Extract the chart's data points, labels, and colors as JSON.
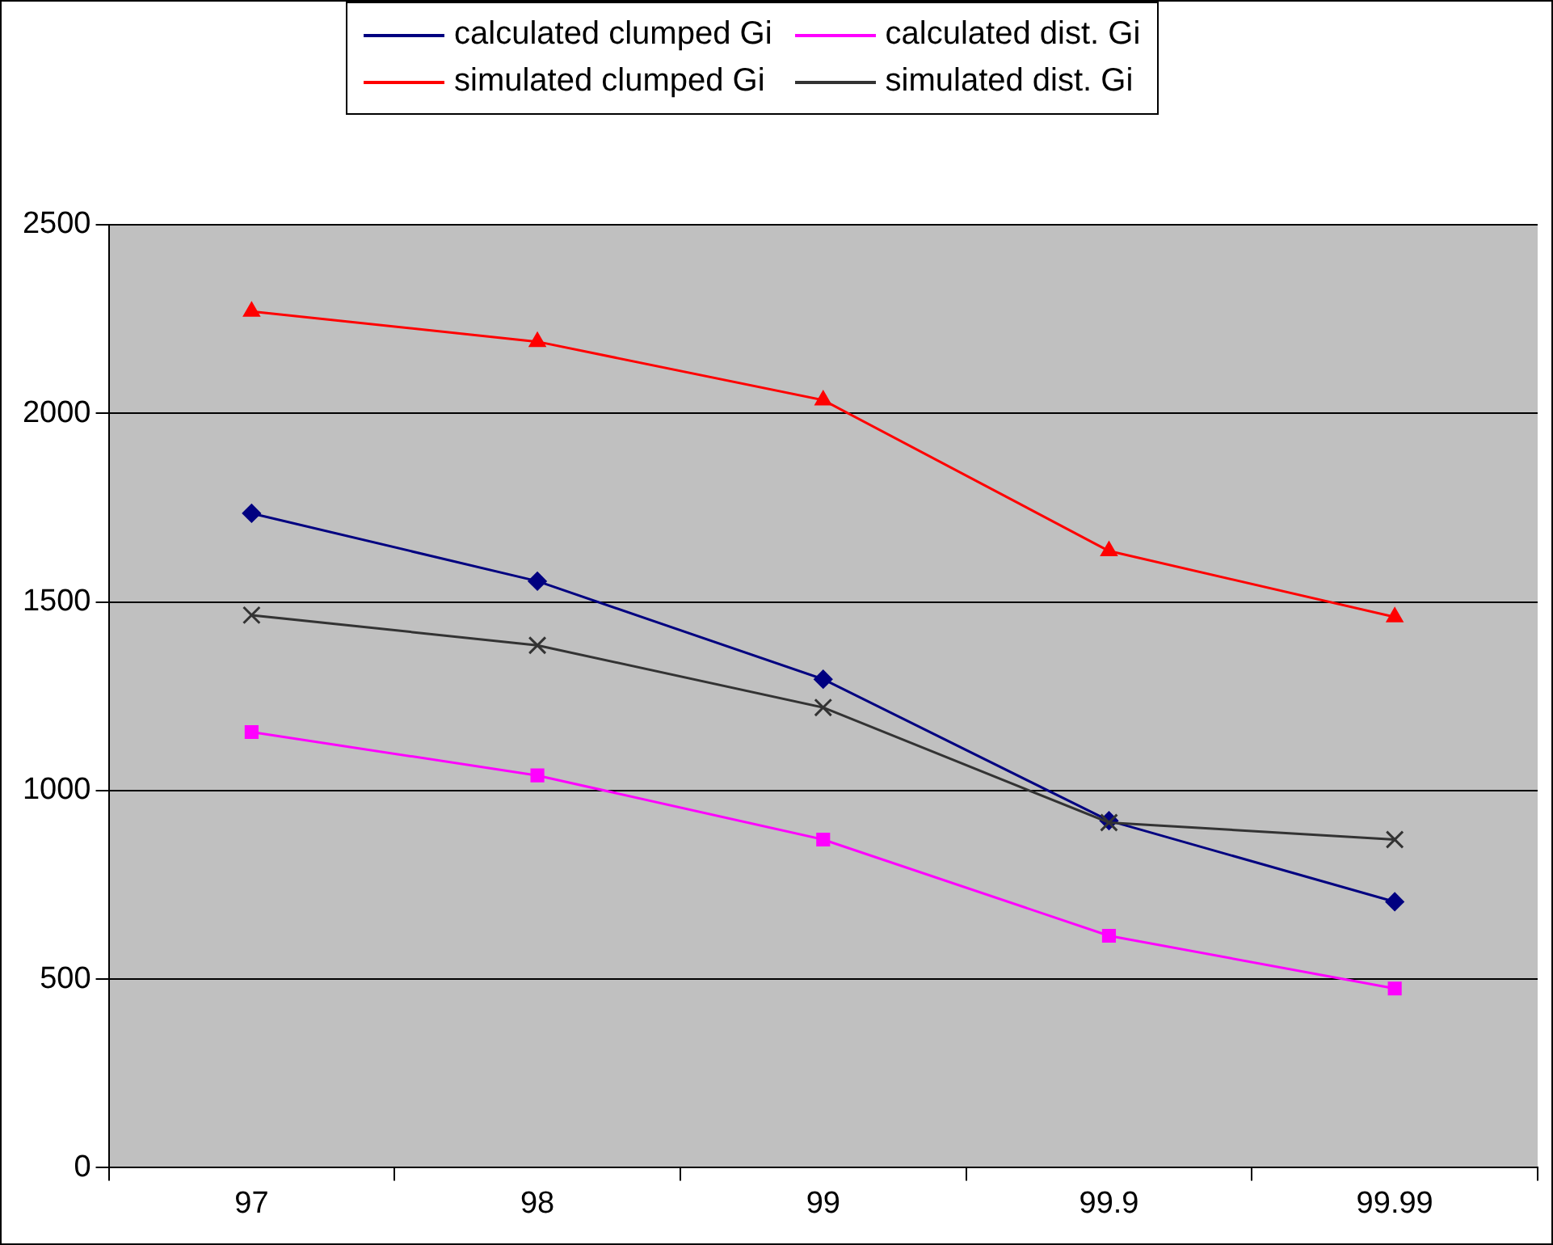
{
  "chart_data": {
    "type": "line",
    "categories": [
      "97",
      "98",
      "99",
      "99.9",
      "99.99"
    ],
    "series": [
      {
        "name": "calculated clumped Gi",
        "color": "#000080",
        "marker": "diamond",
        "values": [
          1735,
          1555,
          1295,
          920,
          705
        ]
      },
      {
        "name": "calculated dist. Gi",
        "color": "#ff00ff",
        "marker": "square",
        "values": [
          1155,
          1040,
          870,
          615,
          475
        ]
      },
      {
        "name": "simulated clumped Gi",
        "color": "#ff0000",
        "marker": "triangle",
        "values": [
          2270,
          2190,
          2035,
          1635,
          1460
        ]
      },
      {
        "name": "simulated dist. Gi",
        "color": "#333333",
        "marker": "cross",
        "values": [
          1465,
          1385,
          1220,
          915,
          870
        ]
      }
    ],
    "ylim": [
      0,
      2500
    ],
    "yticks": [
      0,
      500,
      1000,
      1500,
      2000,
      2500
    ],
    "grid": "y",
    "legend": "top"
  }
}
